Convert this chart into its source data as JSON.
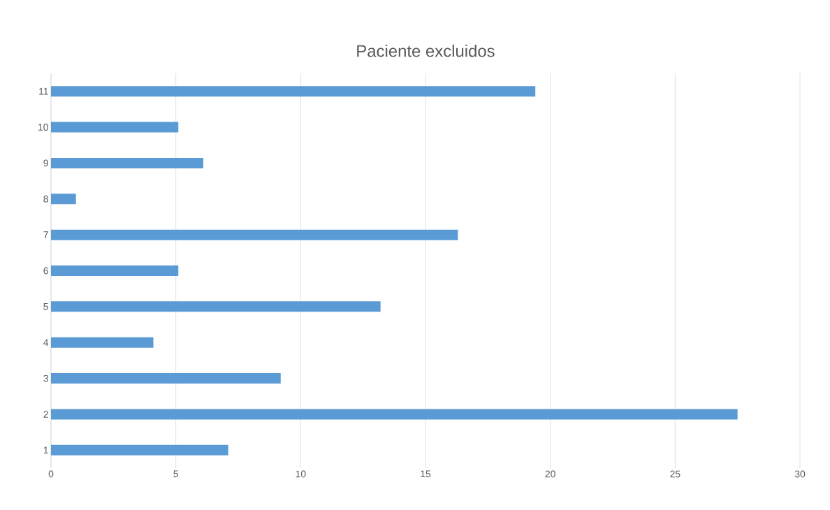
{
  "chart_data": {
    "type": "bar",
    "orientation": "horizontal",
    "title": "Paciente excluidos",
    "categories": [
      "11",
      "10",
      "9",
      "8",
      "7",
      "6",
      "5",
      "4",
      "3",
      "2",
      "1"
    ],
    "values": [
      19.4,
      5.1,
      6.1,
      1.0,
      16.3,
      5.1,
      13.2,
      4.1,
      9.2,
      27.5,
      7.1
    ],
    "color": "#5b9bd5",
    "xlim": [
      0,
      30
    ],
    "xticks": [
      0,
      5,
      10,
      15,
      20,
      25,
      30
    ],
    "grid": "x"
  }
}
